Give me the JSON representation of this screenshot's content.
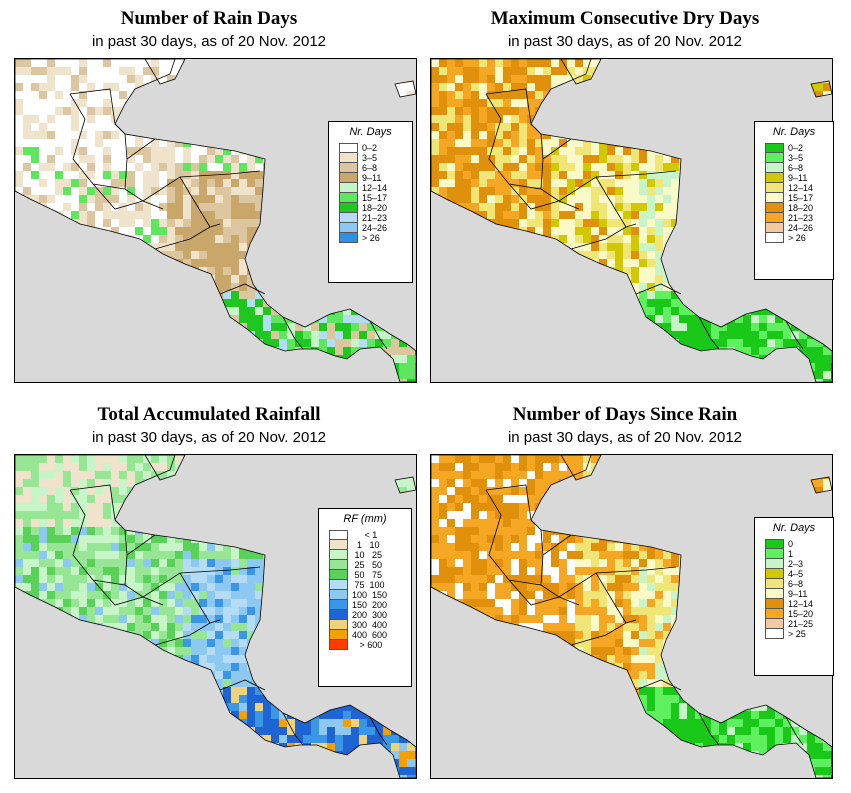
{
  "panels": [
    {
      "title": "Number of Rain Days",
      "subtitle": "in past 30 days, as of  20 Nov. 2012",
      "legend": {
        "title": "Nr. Days",
        "entries": [
          {
            "label": "0–2",
            "color": "#ffffff"
          },
          {
            "label": "3–5",
            "color": "#f0e3cc"
          },
          {
            "label": "6–8",
            "color": "#dcc6a0"
          },
          {
            "label": "9–11",
            "color": "#c9a76a"
          },
          {
            "label": "12–14",
            "color": "#c8f5c8"
          },
          {
            "label": "15–17",
            "color": "#5ee65e"
          },
          {
            "label": "18–20",
            "color": "#1ec81e"
          },
          {
            "label": "21–23",
            "color": "#b4dcf5"
          },
          {
            "label": "24–26",
            "color": "#8cc8f0"
          },
          {
            "label": "> 26",
            "color": "#2f8fe0"
          }
        ]
      }
    },
    {
      "title": "Maximum Consecutive Dry Days",
      "subtitle": "in past 30 days, as of  20 Nov. 2012",
      "legend": {
        "title": "Nr. Days",
        "entries": [
          {
            "label": "0–2",
            "color": "#19c819"
          },
          {
            "label": "3–5",
            "color": "#5ef05e"
          },
          {
            "label": "6–8",
            "color": "#c8f5c8"
          },
          {
            "label": "9–11",
            "color": "#d2c800"
          },
          {
            "label": "12–14",
            "color": "#f0e678"
          },
          {
            "label": "15–17",
            "color": "#fafac8"
          },
          {
            "label": "18–20",
            "color": "#e0900a"
          },
          {
            "label": "21–23",
            "color": "#f5a623"
          },
          {
            "label": "24–26",
            "color": "#f5c8a0"
          },
          {
            "label": "> 26",
            "color": "#ffffff"
          }
        ]
      }
    },
    {
      "title": "Total Accumulated Rainfall",
      "subtitle": "in past 30 days, as of  20 Nov. 2012",
      "legend": {
        "title": "RF (mm)",
        "entries": [
          {
            "label": "     < 1",
            "color": "#ffffff"
          },
          {
            "label": "  1   10",
            "color": "#f0e3cc"
          },
          {
            "label": " 10   25",
            "color": "#c8f5c8"
          },
          {
            "label": " 25   50",
            "color": "#96e696"
          },
          {
            "label": " 50   75",
            "color": "#5ad25a"
          },
          {
            "label": " 75  100",
            "color": "#b4dcf5"
          },
          {
            "label": "100  150",
            "color": "#8cc8f0"
          },
          {
            "label": "150  200",
            "color": "#3c96e6"
          },
          {
            "label": "200  300",
            "color": "#1e64d2"
          },
          {
            "label": "300  400",
            "color": "#f0d278"
          },
          {
            "label": "400  600",
            "color": "#f5a000"
          },
          {
            "label": "   > 600",
            "color": "#ff3c00"
          }
        ]
      }
    },
    {
      "title": "Number of Days Since Rain",
      "subtitle": "in past 30 days, as of  20 Nov. 2012",
      "legend": {
        "title": "Nr. Days",
        "entries": [
          {
            "label": "0",
            "color": "#19c819"
          },
          {
            "label": "1",
            "color": "#5ef05e"
          },
          {
            "label": "2–3",
            "color": "#c8f5c8"
          },
          {
            "label": "4–5",
            "color": "#d2c800"
          },
          {
            "label": "6–8",
            "color": "#f0e678"
          },
          {
            "label": "9–11",
            "color": "#fafac8"
          },
          {
            "label": "12–14",
            "color": "#e0900a"
          },
          {
            "label": "15–20",
            "color": "#f5a623"
          },
          {
            "label": "21–25",
            "color": "#f5c8a0"
          },
          {
            "label": "> 25",
            "color": "#ffffff"
          }
        ]
      }
    }
  ]
}
